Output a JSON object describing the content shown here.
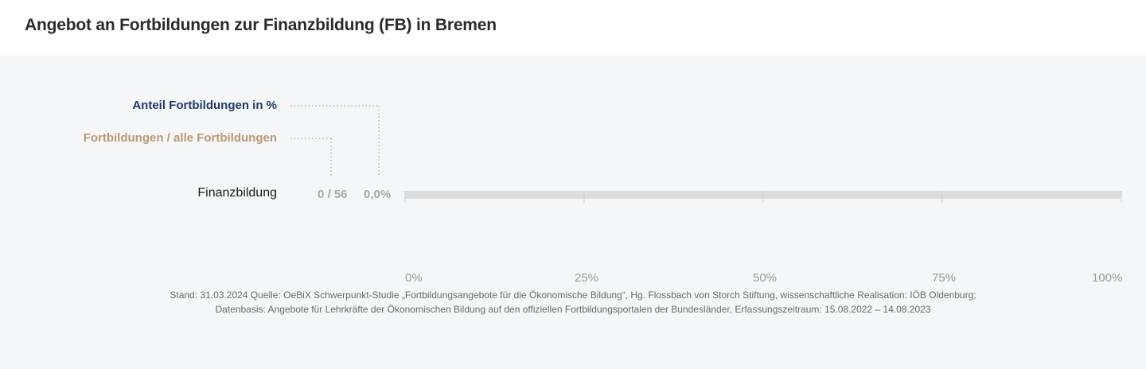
{
  "title": "Angebot an Fortbildungen zur Finanzbildung (FB) in Bremen",
  "legend": {
    "share_label": "Anteil Fortbildungen  in %",
    "count_label": "Fortbildungen / alle Fortbildungen"
  },
  "colors": {
    "share": "#1f3a6e",
    "count": "#b89a70",
    "track": "#dcdcdc",
    "panel": "#f5f6f8"
  },
  "chart_data": {
    "type": "bar",
    "orientation": "horizontal",
    "categories": [
      "Finanzbildung"
    ],
    "values": [
      0.0
    ],
    "value_labels": [
      "0,0%"
    ],
    "count_labels": [
      "0 / 56"
    ],
    "counts": [
      {
        "n": 0,
        "total": 56
      }
    ],
    "xlim": [
      0,
      100
    ],
    "x_ticks": [
      "0%",
      "25%",
      "50%",
      "75%",
      "100%"
    ],
    "x_tick_values": [
      0,
      25,
      50,
      75,
      100
    ],
    "grid": false,
    "legend_position": "top-left"
  },
  "footnote": {
    "line1": "Stand: 31.03.2024 Quelle: OeBiX Schwerpunkt-Studie „Fortbildungsangebote für die Ökonomische Bildung“, Hg. Flossbach von Storch Stiftung, wissenschaftliche Realisation: IÖB Oldenburg;",
    "line2": "Datenbasis: Angebote für Lehrkräfte der Ökonomischen Bildung auf den offiziellen Fortbildungsportalen der Bundesländer, Erfassungszeitraum: 15.08.2022 – 14.08.2023"
  }
}
